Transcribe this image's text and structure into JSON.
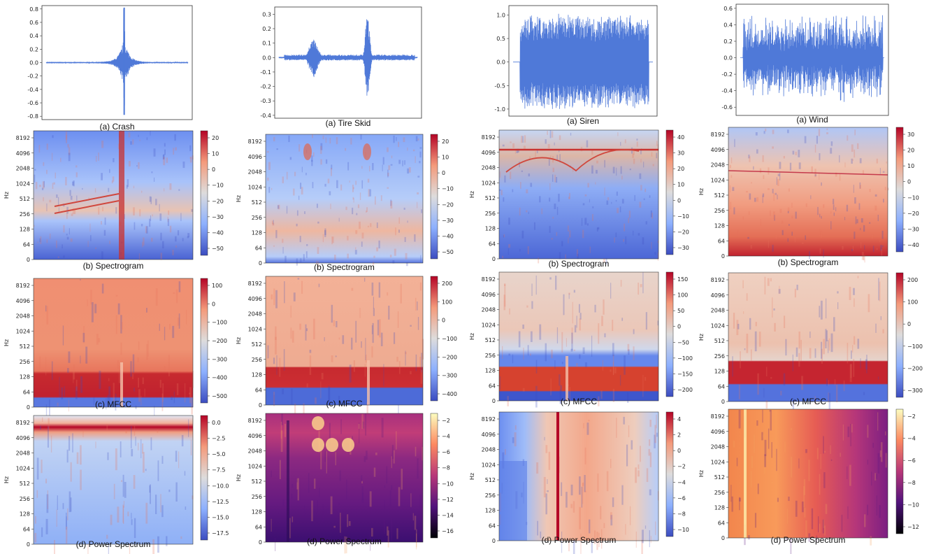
{
  "colors": {
    "waveform": "#4f79d8",
    "coolwarm_low": "#3b4cc0",
    "coolwarm_mid": "#dddcdc",
    "coolwarm_high": "#b40426",
    "magma_low": "#000004",
    "magma_high": "#fcfdbf"
  },
  "panel_captions": {
    "waveform": [
      "(a) Crash",
      "(a) Tire Skid",
      "(a) Siren",
      "(a) Wind"
    ],
    "spectrogram": [
      "(b) Spectrogram",
      "(b) Spectrogram",
      "(b) Spectrogram",
      "(b) Spectrogram"
    ],
    "mfcc": [
      "(c) MFCC",
      "(c) MFCC",
      "(c) MFCC",
      "(c) MFCC"
    ],
    "power": [
      "(d) Power Spectrum",
      "(d) Power Spectrum",
      "(d) Power Spectrum",
      "(d) Power Spectrum"
    ]
  },
  "chart_data": [
    {
      "type": "line",
      "name": "Crash waveform",
      "ylim": [
        -0.85,
        0.85
      ],
      "yticks": [
        "0.8",
        "0.6",
        "0.4",
        "0.2",
        "0.0",
        "-0.2",
        "-0.4",
        "-0.6",
        "-0.8"
      ],
      "envelope": "impulse-center",
      "peak": 0.82
    },
    {
      "type": "line",
      "name": "Tire Skid waveform",
      "ylim": [
        -0.42,
        0.35
      ],
      "yticks": [
        "0.3",
        "0.2",
        "0.1",
        "0.0",
        "-0.1",
        "-0.2",
        "-0.3",
        "-0.4"
      ],
      "envelope": "two-bursts",
      "peak": 0.33
    },
    {
      "type": "line",
      "name": "Siren waveform",
      "ylim": [
        -1.15,
        1.2
      ],
      "yticks": [
        "1.0",
        "0.5",
        "0.0",
        "-0.5",
        "-1.0"
      ],
      "envelope": "dense-full",
      "peak": 1.0
    },
    {
      "type": "line",
      "name": "Wind waveform",
      "ylim": [
        -0.7,
        0.65
      ],
      "yticks": [
        "0.6",
        "0.4",
        "0.2",
        "0.0",
        "-0.2",
        "-0.4",
        "-0.6"
      ],
      "envelope": "noisy-full",
      "peak": 0.55
    },
    {
      "type": "heatmap",
      "name": "Crash spectrogram",
      "ylabel": "Hz",
      "yticks": [
        "8192",
        "4096",
        "2048",
        "1024",
        "512",
        "256",
        "128",
        "64",
        "0"
      ],
      "colorbar_ticks": [
        "20",
        "10",
        "0",
        "−10",
        "−20",
        "−30",
        "−40",
        "−50"
      ],
      "cmap": "coolwarm"
    },
    {
      "type": "heatmap",
      "name": "Tire Skid spectrogram",
      "ylabel": "Hz",
      "yticks": [
        "8192",
        "4096",
        "2048",
        "1024",
        "512",
        "256",
        "128",
        "64",
        "0"
      ],
      "colorbar_ticks": [
        "20",
        "10",
        "0",
        "−10",
        "−20",
        "−30",
        "−40",
        "−50"
      ],
      "cmap": "coolwarm"
    },
    {
      "type": "heatmap",
      "name": "Siren spectrogram",
      "ylabel": "Hz",
      "yticks": [
        "8192",
        "4096",
        "2048",
        "1024",
        "512",
        "256",
        "128",
        "64",
        "0"
      ],
      "colorbar_ticks": [
        "40",
        "30",
        "20",
        "10",
        "0",
        "−10",
        "−20",
        "−30"
      ],
      "cmap": "coolwarm"
    },
    {
      "type": "heatmap",
      "name": "Wind spectrogram",
      "ylabel": "Hz",
      "yticks": [
        "8192",
        "4096",
        "2048",
        "1024",
        "512",
        "256",
        "128",
        "64",
        "0"
      ],
      "colorbar_ticks": [
        "30",
        "20",
        "10",
        "0",
        "−10",
        "−20",
        "−30",
        "−40"
      ],
      "cmap": "coolwarm"
    },
    {
      "type": "heatmap",
      "name": "Crash MFCC",
      "ylabel": "Hz",
      "yticks": [
        "8192",
        "4096",
        "2048",
        "1024",
        "512",
        "256",
        "128",
        "64",
        "0"
      ],
      "colorbar_ticks": [
        "100",
        "0",
        "−100",
        "−200",
        "−300",
        "−400",
        "−500"
      ],
      "cmap": "coolwarm"
    },
    {
      "type": "heatmap",
      "name": "Tire Skid MFCC",
      "ylabel": "Hz",
      "yticks": [
        "8192",
        "4096",
        "2048",
        "1024",
        "512",
        "256",
        "128",
        "64",
        "0"
      ],
      "colorbar_ticks": [
        "200",
        "100",
        "0",
        "−100",
        "−200",
        "−300",
        "−400"
      ],
      "cmap": "coolwarm"
    },
    {
      "type": "heatmap",
      "name": "Siren MFCC",
      "ylabel": "Hz",
      "yticks": [
        "8192",
        "4096",
        "2048",
        "1024",
        "512",
        "256",
        "128",
        "64",
        "0"
      ],
      "colorbar_ticks": [
        "150",
        "100",
        "50",
        "0",
        "−50",
        "−100",
        "−150",
        "−200"
      ],
      "cmap": "coolwarm"
    },
    {
      "type": "heatmap",
      "name": "Wind MFCC",
      "ylabel": "Hz",
      "yticks": [
        "8192",
        "4096",
        "2048",
        "1024",
        "512",
        "256",
        "128",
        "64",
        "0"
      ],
      "colorbar_ticks": [
        "200",
        "100",
        "0",
        "−100",
        "−200",
        "−300"
      ],
      "cmap": "coolwarm"
    },
    {
      "type": "heatmap",
      "name": "Crash power spectrum",
      "ylabel": "Hz",
      "yticks": [
        "8192",
        "4096",
        "2048",
        "1024",
        "512",
        "256",
        "128",
        "64",
        "0"
      ],
      "colorbar_ticks": [
        "0.0",
        "−2.5",
        "−5.0",
        "−7.5",
        "−10.0",
        "−12.5",
        "−15.0",
        "−17.5"
      ],
      "cmap": "coolwarm"
    },
    {
      "type": "heatmap",
      "name": "Tire Skid power spectrum",
      "ylabel": "Hz",
      "yticks": [
        "8192",
        "4096",
        "2048",
        "1024",
        "512",
        "256",
        "128",
        "64",
        "0"
      ],
      "colorbar_ticks": [
        "−2",
        "−4",
        "−6",
        "−8",
        "−10",
        "−12",
        "−14",
        "−16"
      ],
      "cmap": "magma"
    },
    {
      "type": "heatmap",
      "name": "Siren power spectrum",
      "ylabel": "Hz",
      "yticks": [
        "8192",
        "4096",
        "2048",
        "1024",
        "512",
        "256",
        "128",
        "64",
        "0"
      ],
      "colorbar_ticks": [
        "4",
        "2",
        "0",
        "−2",
        "−4",
        "−6",
        "−8",
        "−10"
      ],
      "cmap": "coolwarm"
    },
    {
      "type": "heatmap",
      "name": "Wind power spectrum",
      "ylabel": "Hz",
      "yticks": [
        "8192",
        "4096",
        "2048",
        "1024",
        "512",
        "256",
        "128",
        "64",
        "0"
      ],
      "colorbar_ticks": [
        "−2",
        "−4",
        "−6",
        "−8",
        "−10",
        "−12"
      ],
      "cmap": "magma"
    }
  ]
}
